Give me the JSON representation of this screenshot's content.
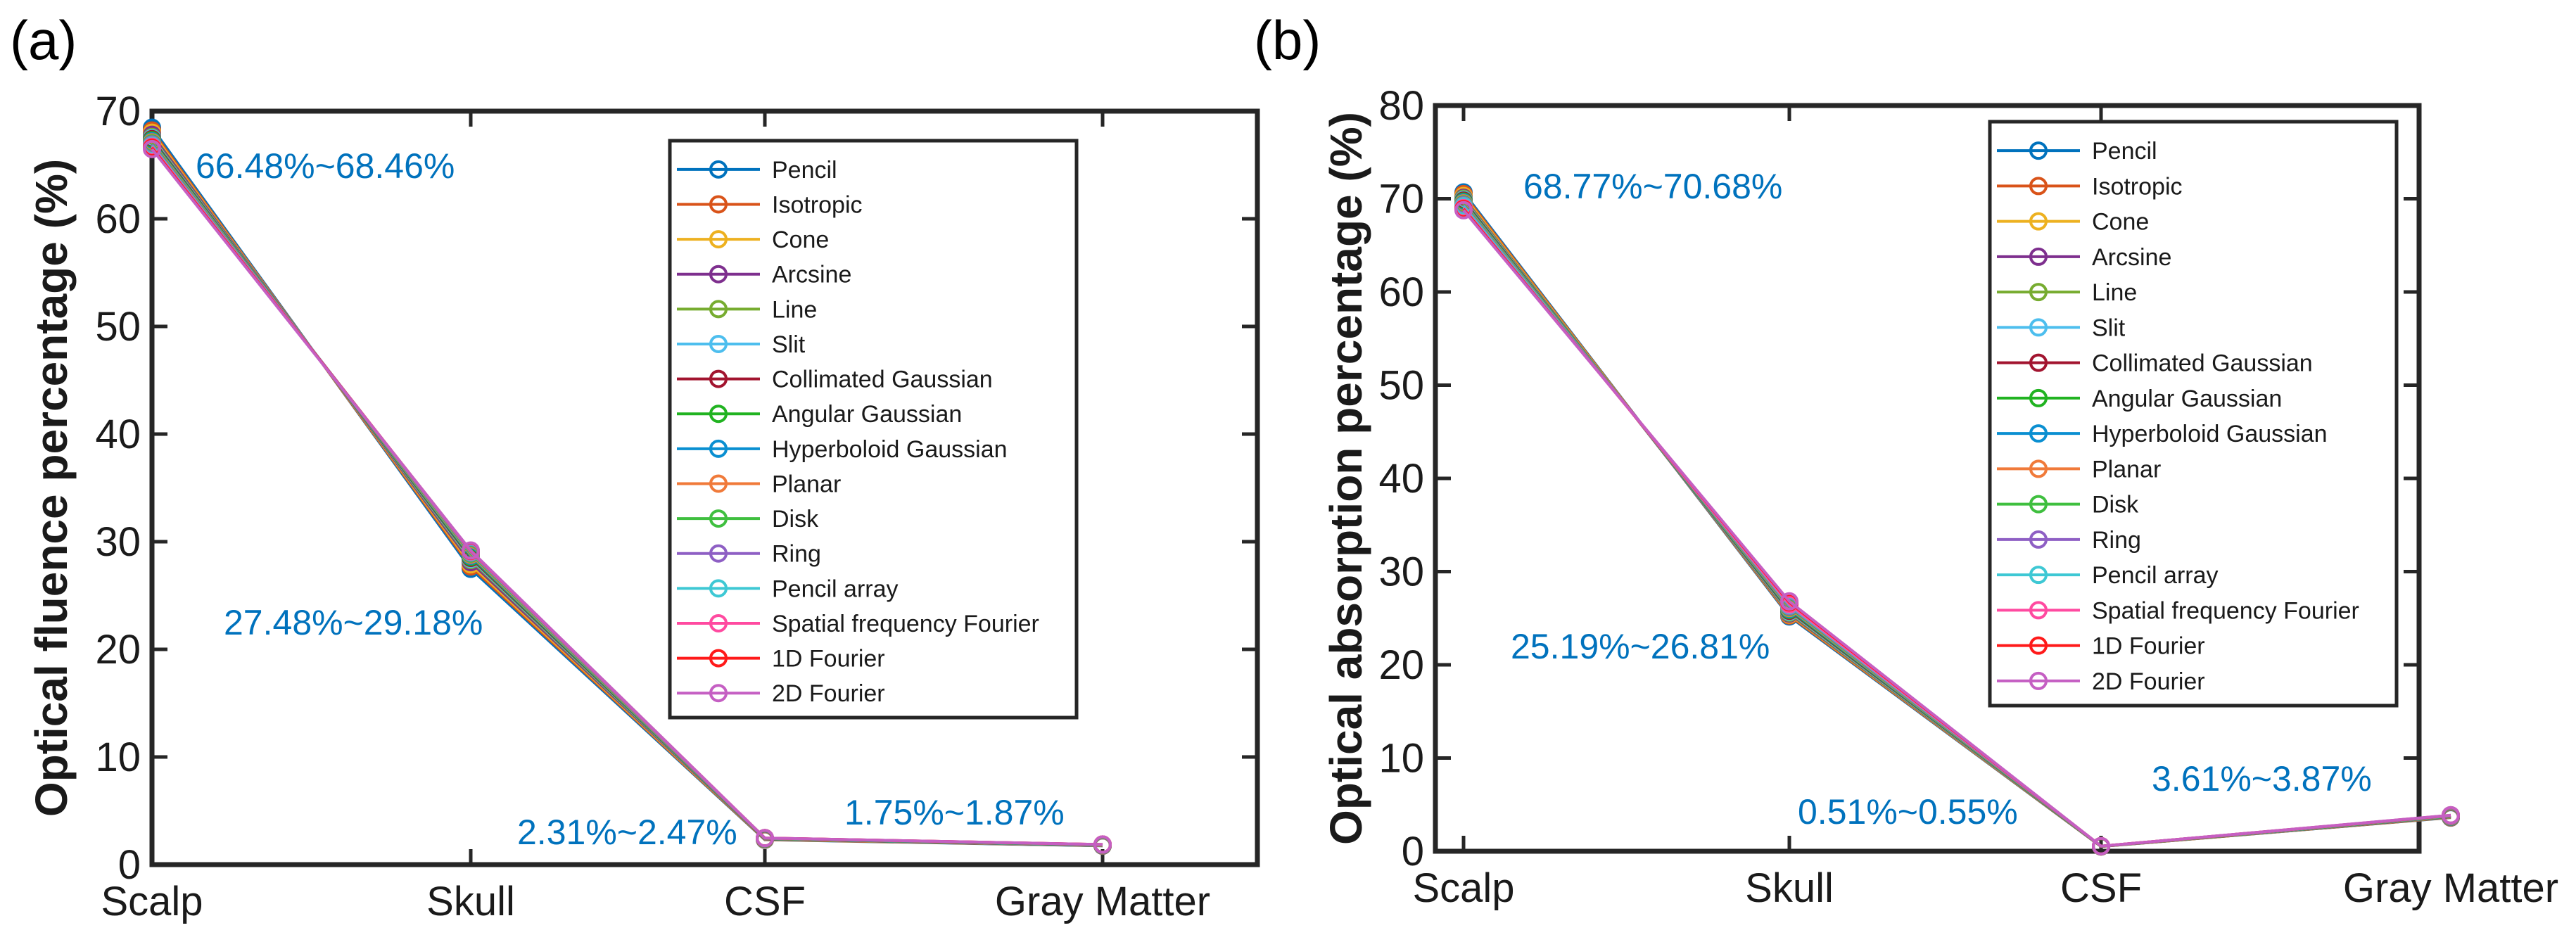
{
  "chart_data": [
    {
      "panel": "(a)",
      "type": "line",
      "ylabel": "Optical fluence percentage (%)",
      "xlabel": "",
      "categories": [
        "Scalp",
        "Skull",
        "CSF",
        "Gray Matter"
      ],
      "ylim": [
        0,
        70
      ],
      "yticks": [
        0,
        10,
        20,
        30,
        40,
        50,
        60,
        70
      ],
      "legend_position": "top-right",
      "grid": false,
      "series": [
        {
          "name": "Pencil",
          "color": "#0072bd",
          "values": [
            68.46,
            27.48,
            2.31,
            1.75
          ]
        },
        {
          "name": "Isotropic",
          "color": "#d95319",
          "values": [
            68.2,
            27.7,
            2.33,
            1.76
          ]
        },
        {
          "name": "Cone",
          "color": "#edb120",
          "values": [
            68.0,
            27.9,
            2.35,
            1.77
          ]
        },
        {
          "name": "Arcsine",
          "color": "#7e2f8e",
          "values": [
            67.8,
            28.1,
            2.37,
            1.78
          ]
        },
        {
          "name": "Line",
          "color": "#77ac30",
          "values": [
            67.6,
            28.3,
            2.39,
            1.79
          ]
        },
        {
          "name": "Slit",
          "color": "#4dbeee",
          "values": [
            67.5,
            28.4,
            2.4,
            1.8
          ]
        },
        {
          "name": "Collimated Gaussian",
          "color": "#a2142f",
          "values": [
            67.4,
            28.5,
            2.41,
            1.81
          ]
        },
        {
          "name": "Angular Gaussian",
          "color": "#21b321",
          "values": [
            67.3,
            28.6,
            2.42,
            1.82
          ]
        },
        {
          "name": "Hyperboloid Gaussian",
          "color": "#0a8fd1",
          "values": [
            67.2,
            28.7,
            2.43,
            1.83
          ]
        },
        {
          "name": "Planar",
          "color": "#f07a3a",
          "values": [
            67.1,
            28.8,
            2.44,
            1.84
          ]
        },
        {
          "name": "Disk",
          "color": "#3fbf3f",
          "values": [
            67.0,
            28.9,
            2.45,
            1.85
          ]
        },
        {
          "name": "Ring",
          "color": "#8e5fc4",
          "values": [
            66.9,
            29.0,
            2.46,
            1.86
          ]
        },
        {
          "name": "Pencil array",
          "color": "#3ec8d4",
          "values": [
            66.8,
            29.05,
            2.46,
            1.86
          ]
        },
        {
          "name": "Spatial frequency Fourier",
          "color": "#ff4aa0",
          "values": [
            66.7,
            29.1,
            2.47,
            1.87
          ]
        },
        {
          "name": "1D Fourier",
          "color": "#ff1a1a",
          "values": [
            66.6,
            29.15,
            2.47,
            1.87
          ]
        },
        {
          "name": "2D Fourier",
          "color": "#c55fc3",
          "values": [
            66.48,
            29.18,
            2.47,
            1.87
          ]
        }
      ],
      "annotations": [
        "66.48%~68.46%",
        "27.48%~29.18%",
        "2.31%~2.47%",
        "1.75%~1.87%"
      ]
    },
    {
      "panel": "(b)",
      "type": "line",
      "ylabel": "Optical absorption percentage (%)",
      "xlabel": "",
      "categories": [
        "Scalp",
        "Skull",
        "CSF",
        "Gray Matter"
      ],
      "ylim": [
        0,
        80
      ],
      "yticks": [
        0,
        10,
        20,
        30,
        40,
        50,
        60,
        70,
        80
      ],
      "legend_position": "top-right",
      "grid": false,
      "series": [
        {
          "name": "Pencil",
          "color": "#0072bd",
          "values": [
            70.68,
            25.19,
            0.51,
            3.61
          ]
        },
        {
          "name": "Isotropic",
          "color": "#d95319",
          "values": [
            70.5,
            25.3,
            0.51,
            3.63
          ]
        },
        {
          "name": "Cone",
          "color": "#edb120",
          "values": [
            70.3,
            25.4,
            0.52,
            3.65
          ]
        },
        {
          "name": "Arcsine",
          "color": "#7e2f8e",
          "values": [
            70.1,
            25.5,
            0.52,
            3.67
          ]
        },
        {
          "name": "Line",
          "color": "#77ac30",
          "values": [
            70.0,
            25.6,
            0.52,
            3.69
          ]
        },
        {
          "name": "Slit",
          "color": "#4dbeee",
          "values": [
            69.9,
            25.7,
            0.53,
            3.71
          ]
        },
        {
          "name": "Collimated Gaussian",
          "color": "#a2142f",
          "values": [
            69.8,
            25.8,
            0.53,
            3.72
          ]
        },
        {
          "name": "Angular Gaussian",
          "color": "#21b321",
          "values": [
            69.7,
            25.9,
            0.53,
            3.74
          ]
        },
        {
          "name": "Hyperboloid Gaussian",
          "color": "#0a8fd1",
          "values": [
            69.6,
            26.0,
            0.54,
            3.75
          ]
        },
        {
          "name": "Planar",
          "color": "#f07a3a",
          "values": [
            69.5,
            26.1,
            0.54,
            3.77
          ]
        },
        {
          "name": "Disk",
          "color": "#3fbf3f",
          "values": [
            69.4,
            26.2,
            0.54,
            3.79
          ]
        },
        {
          "name": "Ring",
          "color": "#8e5fc4",
          "values": [
            69.3,
            26.3,
            0.54,
            3.81
          ]
        },
        {
          "name": "Pencil array",
          "color": "#3ec8d4",
          "values": [
            69.2,
            26.4,
            0.55,
            3.83
          ]
        },
        {
          "name": "Spatial frequency Fourier",
          "color": "#ff4aa0",
          "values": [
            69.0,
            26.5,
            0.55,
            3.84
          ]
        },
        {
          "name": "1D Fourier",
          "color": "#ff1a1a",
          "values": [
            68.9,
            26.7,
            0.55,
            3.86
          ]
        },
        {
          "name": "2D Fourier",
          "color": "#c55fc3",
          "values": [
            68.77,
            26.81,
            0.55,
            3.87
          ]
        }
      ],
      "annotations": [
        "68.77%~70.68%",
        "25.19%~26.81%",
        "0.51%~0.55%",
        "3.61%~3.87%"
      ]
    }
  ]
}
